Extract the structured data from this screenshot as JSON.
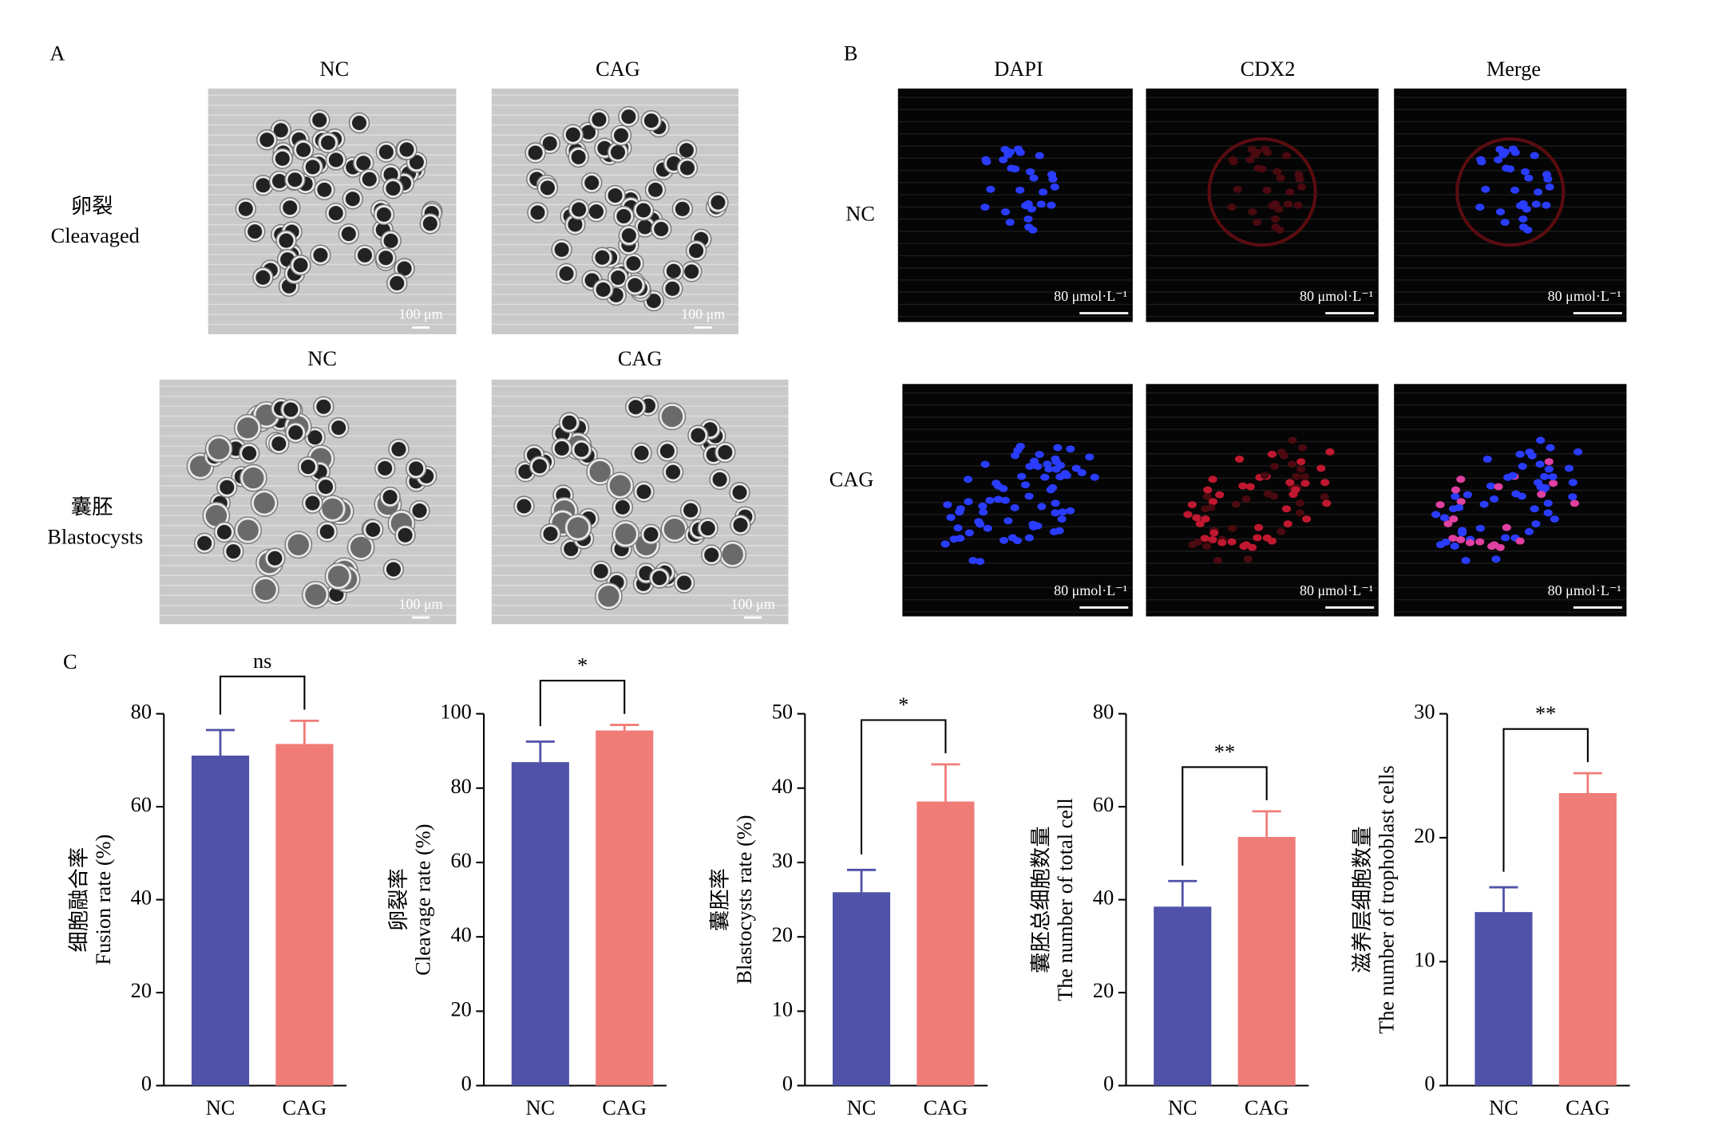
{
  "panel_a": {
    "label": "A",
    "columns_top": [
      "NC",
      "CAG"
    ],
    "columns_bottom": [
      "NC",
      "CAG"
    ],
    "rows": [
      [
        "卵裂",
        "Cleavaged"
      ],
      [
        "囊胚",
        "Blastocysts"
      ]
    ],
    "scale_bar": "100 μm"
  },
  "panel_b": {
    "label": "B",
    "columns": [
      "DAPI",
      "CDX2",
      "Merge"
    ],
    "rows": [
      "NC",
      "CAG"
    ],
    "scale_bar": "80 μmol·L⁻¹"
  },
  "panel_c": {
    "label": "C"
  },
  "chart_data": [
    {
      "type": "bar",
      "ylabel": [
        "细胞融合率",
        "Fusion rate (%)"
      ],
      "categories": [
        "NC",
        "CAG"
      ],
      "values": [
        71,
        73.5
      ],
      "errors": [
        5.5,
        5
      ],
      "colors": [
        "#4f52a8",
        "#f07c78"
      ],
      "ylim": [
        0,
        80
      ],
      "yticks": [
        0,
        20,
        40,
        60,
        80
      ],
      "significance": "ns"
    },
    {
      "type": "bar",
      "ylabel": [
        "卵裂率",
        "Cleavage rate (%)"
      ],
      "categories": [
        "NC",
        "CAG"
      ],
      "values": [
        87,
        95.5
      ],
      "errors": [
        5.5,
        1.5
      ],
      "colors": [
        "#4f52a8",
        "#f07c78"
      ],
      "ylim": [
        0,
        100
      ],
      "yticks": [
        0,
        20,
        40,
        60,
        80,
        100
      ],
      "significance": "*"
    },
    {
      "type": "bar",
      "ylabel": [
        "囊胚率",
        "Blastocysts rate (%)"
      ],
      "categories": [
        "NC",
        "CAG"
      ],
      "values": [
        26,
        38.2
      ],
      "errors": [
        3,
        5
      ],
      "colors": [
        "#4f52a8",
        "#f07c78"
      ],
      "ylim": [
        0,
        50
      ],
      "yticks": [
        0,
        10,
        20,
        30,
        40,
        50
      ],
      "significance": "*"
    },
    {
      "type": "bar",
      "ylabel": [
        "囊胚总细胞数量",
        "The number of total cell"
      ],
      "categories": [
        "NC",
        "CAG"
      ],
      "values": [
        38.5,
        53.5
      ],
      "errors": [
        5.5,
        5.5
      ],
      "colors": [
        "#4f52a8",
        "#f07c78"
      ],
      "ylim": [
        0,
        80
      ],
      "yticks": [
        0,
        20,
        40,
        60,
        80
      ],
      "significance": "**"
    },
    {
      "type": "bar",
      "ylabel": [
        "滋养层细胞数量",
        "The number of trophoblast cells"
      ],
      "categories": [
        "NC",
        "CAG"
      ],
      "values": [
        14,
        23.6
      ],
      "errors": [
        2,
        1.6
      ],
      "colors": [
        "#4f52a8",
        "#f07c78"
      ],
      "ylim": [
        0,
        30
      ],
      "yticks": [
        0,
        10,
        20,
        30
      ],
      "significance": "**"
    }
  ]
}
